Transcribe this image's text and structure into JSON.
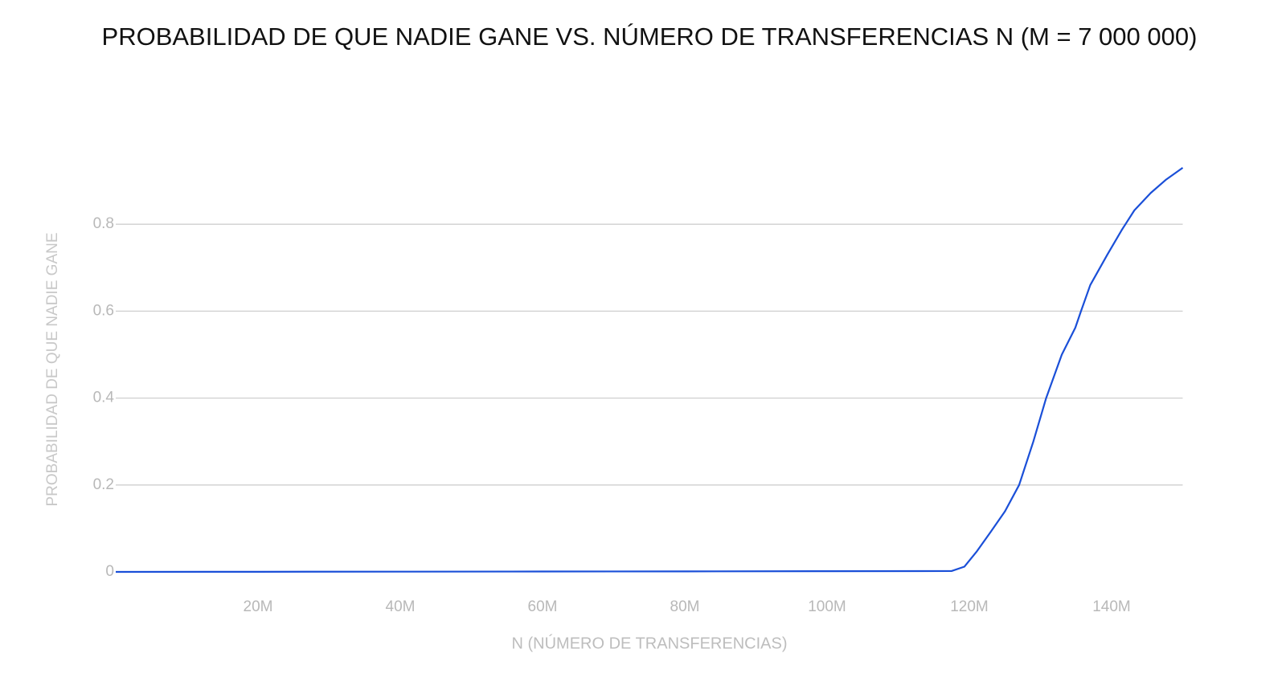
{
  "chart_data": {
    "type": "line",
    "title": "PROBABILIDAD DE QUE NADIE GANE VS. NÚMERO DE TRANSFERENCIAS N (M = 7 000 000)",
    "xlabel": "N (NÚMERO DE TRANSFERENCIAS)",
    "ylabel": "PROBABILIDAD DE QUE NADIE GANE",
    "x": [
      0,
      20000000,
      40000000,
      60000000,
      80000000,
      100000000,
      117500000,
      119300000,
      121000000,
      123000000,
      125000000,
      127000000,
      129000000,
      130800000,
      133000000,
      134900000,
      135700000,
      137000000,
      139400000,
      141400000,
      143200000,
      145500000,
      147600000,
      150000000
    ],
    "values": [
      0,
      0.0003,
      0.0006,
      0.0009,
      0.0012,
      0.0016,
      0.002,
      0.012,
      0.046,
      0.092,
      0.139,
      0.2,
      0.3,
      0.4,
      0.5,
      0.562,
      0.6,
      0.66,
      0.73,
      0.786,
      0.832,
      0.872,
      0.902,
      0.93
    ],
    "color": "#1a4fd8",
    "xlim": [
      0,
      150000000
    ],
    "ylim": [
      0,
      1
    ],
    "xticks": [
      {
        "value": 20000000,
        "label": "20M"
      },
      {
        "value": 40000000,
        "label": "40M"
      },
      {
        "value": 60000000,
        "label": "60M"
      },
      {
        "value": 80000000,
        "label": "80M"
      },
      {
        "value": 100000000,
        "label": "100M"
      },
      {
        "value": 120000000,
        "label": "120M"
      },
      {
        "value": 140000000,
        "label": "140M"
      }
    ],
    "yticks": [
      0,
      0.2,
      0.4,
      0.6,
      0.8
    ],
    "grid": true
  }
}
